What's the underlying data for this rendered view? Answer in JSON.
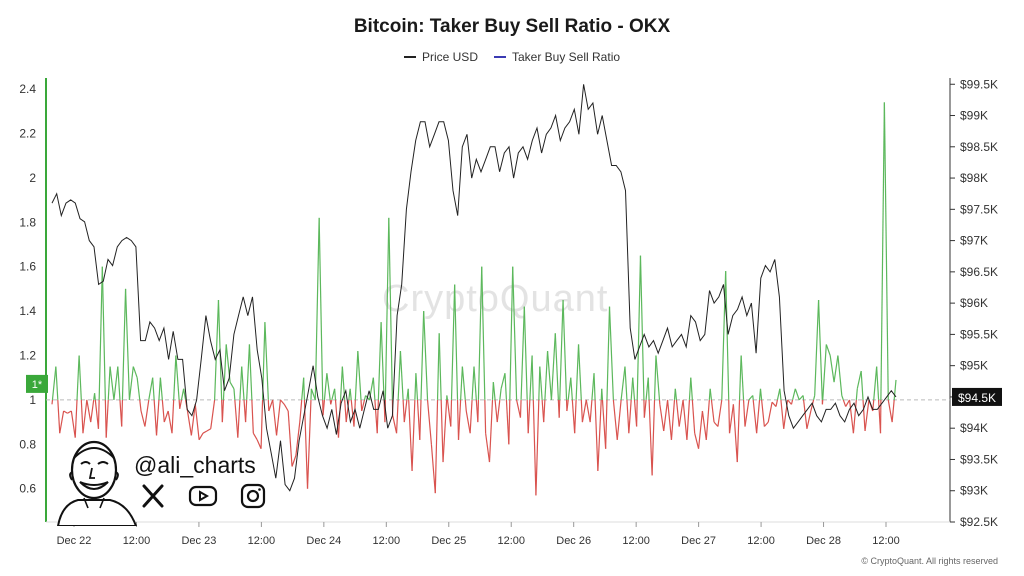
{
  "title": "Bitcoin: Taker Buy Sell Ratio - OKX",
  "legend": [
    {
      "label": "Price USD",
      "color": "#222222"
    },
    {
      "label": "Taker Buy Sell Ratio",
      "color": "#3b3bb3"
    }
  ],
  "watermark": "CryptoQuant",
  "copyright": "© CryptoQuant. All rights reserved",
  "handle": "@ali_charts",
  "social_icons": [
    "x-icon",
    "youtube-icon",
    "instagram-icon"
  ],
  "colors": {
    "up": "#5cb85c",
    "down": "#d9534f",
    "price": "#222222",
    "flag": "#3aa83a"
  },
  "chart_data": {
    "type": "line",
    "x_labels": [
      "Dec 22",
      "12:00",
      "Dec 23",
      "12:00",
      "Dec 24",
      "12:00",
      "Dec 25",
      "12:00",
      "Dec 26",
      "12:00",
      "Dec 27",
      "12:00",
      "Dec 28",
      "12:00"
    ],
    "left_axis": {
      "ticks": [
        "2.4",
        "2.2",
        "2",
        "1.8",
        "1.6",
        "1.4",
        "1.2",
        "1",
        "0.8",
        "0.6"
      ],
      "ylim": [
        0.45,
        2.45
      ]
    },
    "right_axis": {
      "ticks": [
        "$99.5K",
        "$99K",
        "$98.5K",
        "$98K",
        "$97.5K",
        "$97K",
        "$96.5K",
        "$96K",
        "$95.5K",
        "$95K",
        "$94.5K",
        "$94K",
        "$93.5K",
        "$93K",
        "$92.5K"
      ],
      "ylim": [
        92.5,
        99.6
      ]
    },
    "threshold": 1,
    "threshold_flag": "1*",
    "current_price_label": "$94.5K",
    "series": [
      {
        "name": "Taker Buy Sell Ratio",
        "axis": "left",
        "values": [
          0.98,
          1.15,
          0.85,
          0.95,
          0.94,
          0.95,
          0.83,
          1.2,
          0.85,
          1.0,
          0.9,
          1.03,
          0.87,
          1.6,
          0.83,
          1.15,
          1.0,
          1.15,
          0.88,
          1.5,
          1.0,
          1.15,
          1.1,
          0.95,
          0.88,
          1.0,
          1.1,
          0.84,
          1.1,
          0.9,
          0.95,
          0.85,
          1.2,
          0.96,
          1.05,
          0.95,
          0.84,
          0.98,
          0.82,
          0.85,
          0.86,
          0.87,
          1.0,
          1.45,
          0.9,
          1.25,
          1.08,
          1.05,
          0.83,
          1.15,
          0.9,
          1.25,
          0.85,
          0.82,
          0.78,
          1.35,
          0.95,
          1.0,
          0.84,
          1.0,
          0.98,
          0.95,
          0.7,
          0.75,
          0.9,
          1.1,
          0.6,
          1.05,
          1.0,
          1.82,
          0.93,
          1.12,
          0.98,
          1.05,
          0.83,
          1.15,
          0.9,
          1.05,
          0.88,
          1.22,
          0.95,
          1.02,
          1.0,
          1.1,
          0.85,
          1.35,
          0.9,
          1.82,
          0.93,
          0.85,
          1.22,
          0.9,
          1.05,
          0.68,
          1.12,
          0.82,
          1.4,
          1.0,
          0.8,
          0.58,
          1.3,
          0.72,
          1.02,
          0.88,
          1.52,
          0.82,
          1.15,
          0.95,
          0.85,
          1.15,
          0.9,
          1.6,
          0.85,
          0.72,
          1.08,
          0.9,
          1.05,
          1.12,
          0.8,
          1.6,
          1.0,
          0.92,
          1.42,
          0.85,
          1.2,
          0.57,
          1.15,
          0.9,
          1.22,
          1.0,
          1.3,
          0.92,
          1.45,
          0.95,
          1.1,
          0.85,
          1.25,
          0.9,
          1.0,
          0.9,
          1.12,
          0.68,
          1.05,
          0.78,
          1.42,
          1.0,
          0.82,
          1.0,
          1.15,
          0.85,
          1.1,
          0.88,
          1.65,
          0.92,
          1.1,
          0.66,
          1.2,
          0.98,
          0.86,
          1.0,
          0.82,
          1.05,
          0.88,
          1.0,
          0.82,
          1.1,
          0.85,
          0.78,
          0.95,
          0.82,
          1.05,
          0.9,
          0.88,
          1.0,
          1.58,
          0.85,
          0.98,
          0.72,
          1.2,
          0.88,
          1.0,
          1.02,
          0.85,
          1.05,
          0.88,
          0.9,
          0.99,
          0.97,
          1.05,
          0.87,
          1.0,
          0.98,
          1.05,
          1.0,
          1.02,
          0.87,
          0.95,
          1.02,
          1.45,
          0.98,
          1.25,
          1.2,
          1.08,
          1.2,
          1.02,
          0.97,
          1.0,
          0.85,
          1.05,
          1.13,
          0.86,
          1.0,
          0.95,
          1.15,
          0.85,
          2.34,
          1.0,
          0.9,
          1.09
        ]
      },
      {
        "name": "Price USD",
        "axis": "right",
        "values": [
          97.6,
          97.75,
          97.4,
          97.6,
          97.65,
          97.6,
          97.35,
          97.3,
          97.0,
          96.9,
          96.3,
          96.35,
          96.7,
          96.6,
          96.9,
          97.0,
          97.05,
          97.0,
          96.9,
          95.4,
          95.4,
          95.7,
          95.6,
          95.4,
          95.6,
          95.1,
          95.55,
          95.1,
          95.1,
          94.3,
          94.2,
          94.45,
          95.1,
          95.8,
          95.4,
          95.1,
          95.25,
          94.6,
          94.8,
          95.5,
          95.8,
          96.1,
          95.8,
          96.1,
          95.25,
          94.8,
          94.0,
          93.6,
          93.2,
          93.8,
          93.1,
          93.0,
          93.2,
          93.8,
          94.2,
          94.6,
          95.0,
          94.5,
          94.2,
          94.0,
          94.3,
          93.9,
          94.4,
          94.6,
          94.1,
          94.3,
          94.0,
          94.3,
          94.6,
          94.3,
          94.3,
          94.6,
          94.0,
          94.2,
          95.8,
          96.3,
          97.5,
          98.1,
          98.6,
          98.9,
          98.9,
          98.5,
          98.7,
          98.9,
          98.9,
          98.6,
          97.8,
          97.4,
          98.5,
          98.7,
          98.0,
          98.3,
          98.1,
          98.3,
          98.5,
          98.5,
          98.1,
          98.4,
          98.5,
          98.0,
          98.4,
          98.5,
          98.3,
          98.6,
          98.8,
          98.4,
          98.7,
          98.8,
          99.0,
          98.6,
          98.8,
          98.9,
          99.1,
          98.7,
          99.5,
          99.1,
          99.2,
          98.7,
          99.0,
          98.6,
          98.2,
          98.2,
          98.1,
          97.8,
          95.6,
          95.1,
          95.3,
          95.5,
          95.3,
          95.4,
          95.2,
          95.4,
          95.6,
          95.3,
          95.4,
          95.5,
          95.3,
          95.8,
          95.7,
          95.4,
          95.5,
          96.2,
          96.0,
          96.1,
          96.3,
          95.5,
          95.8,
          95.9,
          96.1,
          95.8,
          96.0,
          95.2,
          96.4,
          96.6,
          96.5,
          96.7,
          96.1,
          94.6,
          94.2,
          94.0,
          94.1,
          94.2,
          94.3,
          94.4,
          94.2,
          94.1,
          94.3,
          94.3,
          94.4,
          94.2,
          94.1,
          94.3,
          94.4,
          94.2,
          94.3,
          94.5,
          94.3,
          94.3,
          94.4,
          94.5,
          94.6,
          94.5
        ]
      }
    ]
  }
}
